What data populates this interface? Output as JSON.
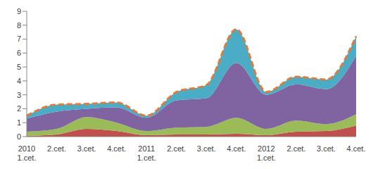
{
  "chart_data": {
    "type": "area",
    "stacked": true,
    "grid": false,
    "categories": [
      "2010 1.cet.",
      "2.cet.",
      "3.cet.",
      "4.cet.",
      "2011 1.cet.",
      "2.cet.",
      "3.cet.",
      "4.cet.",
      "2012 1.cet.",
      "2.cet.",
      "3.cet.",
      "4.cet."
    ],
    "ylim": [
      0,
      9
    ],
    "yticks": [
      0,
      1,
      2,
      3,
      4,
      5,
      6,
      7,
      8,
      9
    ],
    "series": [
      {
        "color": "#c0504d",
        "values": [
          0.05,
          0.15,
          0.55,
          0.4,
          0.1,
          0.15,
          0.15,
          0.2,
          0.1,
          0.35,
          0.4,
          0.8
        ]
      },
      {
        "color": "#9bbb59",
        "values": [
          0.3,
          0.4,
          0.85,
          0.6,
          0.3,
          0.5,
          0.55,
          1.15,
          0.45,
          0.8,
          0.5,
          0.8
        ]
      },
      {
        "color": "#8064a2",
        "values": [
          0.95,
          1.25,
          0.6,
          1.1,
          0.95,
          1.95,
          2.05,
          3.95,
          2.45,
          2.6,
          2.5,
          4.2
        ]
      },
      {
        "color": "#4bacc6",
        "values": [
          0.2,
          0.5,
          0.35,
          0.35,
          0.15,
          0.6,
          0.95,
          2.4,
          0.2,
          0.55,
          0.7,
          1.4
        ]
      },
      {
        "type": "line",
        "line_style": "dashed",
        "color": "#e07b39",
        "values": [
          1.5,
          2.3,
          2.35,
          2.45,
          1.5,
          3.2,
          3.7,
          7.7,
          3.2,
          4.3,
          4.1,
          7.2
        ]
      }
    ]
  }
}
